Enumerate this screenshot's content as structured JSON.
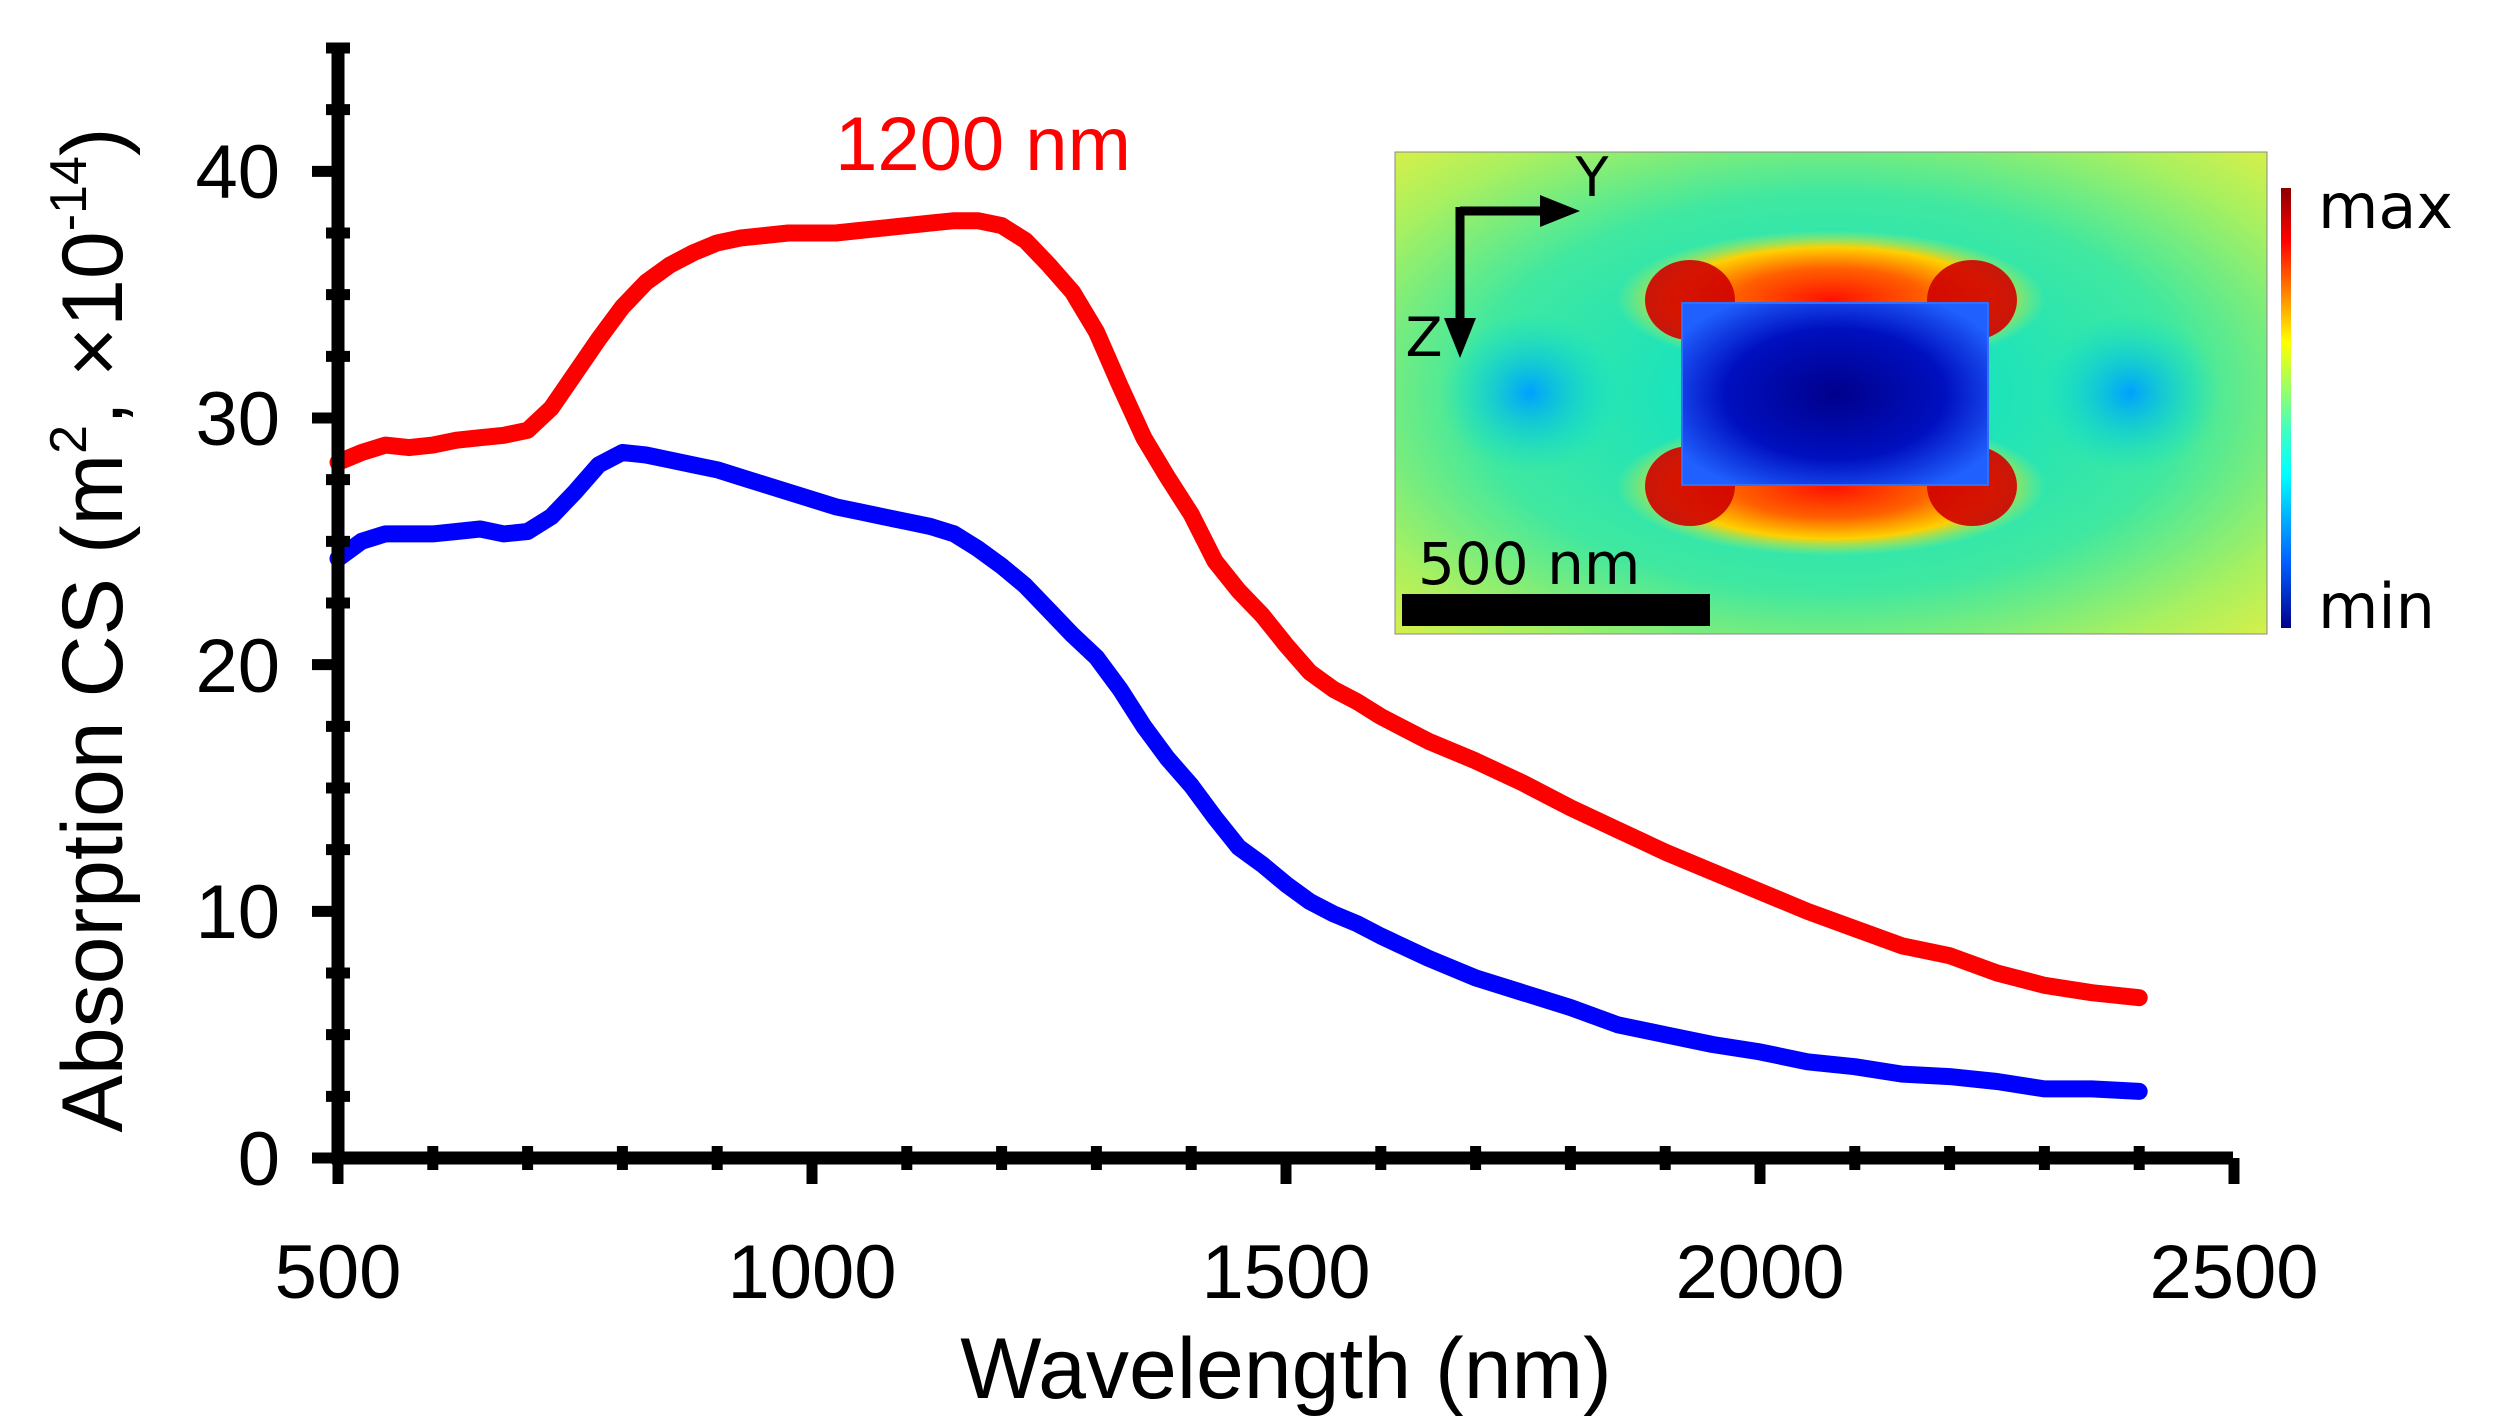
{
  "chart_data": {
    "type": "line",
    "title": "",
    "xlabel": "Wavelength (nm)",
    "ylabel": "Absorption CS (m",
    "ylabel_sup1": "2",
    "ylabel_mid": ", ×10",
    "ylabel_sup2": "-14",
    "ylabel_end": ")",
    "xlim": [
      500,
      2500
    ],
    "ylim": [
      0,
      45
    ],
    "x_ticks": [
      500,
      1000,
      1500,
      2000,
      2500
    ],
    "x_tick_labels": [
      "500",
      "1000",
      "1500",
      "2000",
      "2500"
    ],
    "y_ticks": [
      0,
      10,
      20,
      30,
      40
    ],
    "y_tick_labels": [
      "0",
      "10",
      "20",
      "30",
      "40"
    ],
    "grid": false,
    "annotations": [
      {
        "text": "1200 nm",
        "x": 1180,
        "y": 41.5,
        "color": "#ff0000"
      }
    ],
    "series": [
      {
        "name": "1200 nm",
        "color": "#ff0000",
        "x": [
          500,
          525,
          550,
          575,
          600,
          625,
          650,
          675,
          700,
          725,
          750,
          775,
          800,
          825,
          850,
          875,
          900,
          925,
          950,
          975,
          1000,
          1025,
          1050,
          1075,
          1100,
          1125,
          1150,
          1175,
          1200,
          1225,
          1250,
          1275,
          1300,
          1325,
          1350,
          1375,
          1400,
          1425,
          1450,
          1475,
          1500,
          1525,
          1550,
          1575,
          1600,
          1650,
          1700,
          1750,
          1800,
          1850,
          1900,
          1950,
          2000,
          2050,
          2100,
          2150,
          2200,
          2250,
          2300,
          2350,
          2400
        ],
        "values": [
          28.2,
          28.6,
          28.9,
          28.8,
          28.9,
          29.1,
          29.2,
          29.3,
          29.5,
          30.4,
          31.8,
          33.2,
          34.5,
          35.5,
          36.2,
          36.7,
          37.1,
          37.3,
          37.4,
          37.5,
          37.5,
          37.5,
          37.6,
          37.7,
          37.8,
          37.9,
          38.0,
          38.0,
          37.8,
          37.2,
          36.2,
          35.1,
          33.5,
          31.3,
          29.2,
          27.6,
          26.1,
          24.2,
          23.0,
          22.0,
          20.8,
          19.7,
          19.0,
          18.5,
          17.9,
          16.9,
          16.1,
          15.2,
          14.2,
          13.3,
          12.4,
          11.6,
          10.8,
          10.0,
          9.3,
          8.6,
          8.2,
          7.5,
          7.0,
          6.7,
          6.5
        ]
      },
      {
        "name": "",
        "color": "#0000ff",
        "x": [
          500,
          525,
          550,
          575,
          600,
          625,
          650,
          675,
          700,
          725,
          750,
          775,
          800,
          825,
          850,
          875,
          900,
          925,
          950,
          975,
          1000,
          1025,
          1050,
          1075,
          1100,
          1125,
          1150,
          1175,
          1200,
          1225,
          1250,
          1275,
          1300,
          1325,
          1350,
          1375,
          1400,
          1425,
          1450,
          1475,
          1500,
          1525,
          1550,
          1575,
          1600,
          1650,
          1700,
          1750,
          1800,
          1850,
          1900,
          1950,
          2000,
          2050,
          2100,
          2150,
          2200,
          2250,
          2300,
          2350,
          2400
        ],
        "values": [
          24.3,
          25.0,
          25.3,
          25.3,
          25.3,
          25.4,
          25.5,
          25.3,
          25.4,
          26.0,
          27.0,
          28.1,
          28.6,
          28.5,
          28.3,
          28.1,
          27.9,
          27.6,
          27.3,
          27.0,
          26.7,
          26.4,
          26.2,
          26.0,
          25.8,
          25.6,
          25.3,
          24.7,
          24.0,
          23.2,
          22.2,
          21.2,
          20.3,
          19.0,
          17.5,
          16.2,
          15.1,
          13.8,
          12.6,
          11.9,
          11.1,
          10.4,
          9.9,
          9.5,
          9.0,
          8.1,
          7.3,
          6.7,
          6.1,
          5.4,
          5.0,
          4.6,
          4.3,
          3.9,
          3.7,
          3.4,
          3.3,
          3.1,
          2.8,
          2.8,
          2.7
        ]
      }
    ],
    "inset": {
      "axis_y_label": "Y",
      "axis_z_label": "Z",
      "scale_bar_label": "500 nm",
      "colorbar_max_label": "max",
      "colorbar_min_label": "min"
    }
  }
}
